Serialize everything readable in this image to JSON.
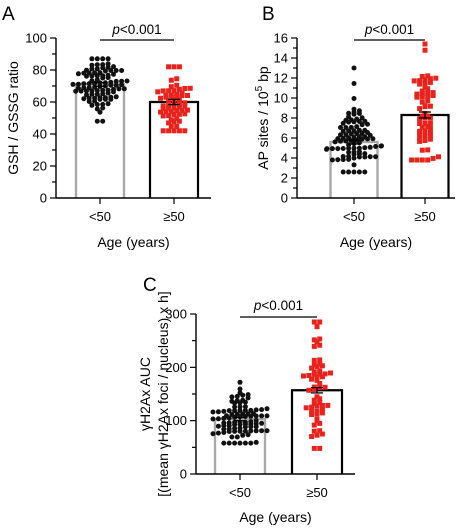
{
  "colors": {
    "under50_points": "#111111",
    "over50_points": "#e8221c",
    "under50_bar": "#a9a9a9",
    "over50_bar": "#000000",
    "axis": "#000000"
  },
  "chart_data": [
    {
      "panel": "A",
      "type": "bar",
      "overlay": "scatter",
      "categories": [
        "<50",
        "≥50"
      ],
      "values": [
        71,
        60
      ],
      "error": [
        1.2,
        1.6
      ],
      "ylabel": "GSH / GSSG ratio",
      "xlabel": "Age (years)",
      "ylim": [
        0,
        100
      ],
      "yticks": [
        0,
        10,
        20,
        30,
        40,
        50,
        60,
        70,
        80,
        90,
        100
      ],
      "ytick_labels": [
        "0",
        "",
        "20",
        "",
        "40",
        "",
        "60",
        "",
        "80",
        "",
        "100"
      ],
      "p_prefix": "p",
      "p_value": "<0.001",
      "marker_shapes": [
        "circle",
        "square"
      ],
      "point_counts": [
        90,
        60
      ],
      "points_range": [
        [
          48,
          87
        ],
        [
          42,
          82
        ]
      ]
    },
    {
      "panel": "B",
      "type": "bar",
      "overlay": "scatter",
      "categories": [
        "<50",
        "≥50"
      ],
      "values": [
        5.6,
        8.3
      ],
      "error": [
        0.2,
        0.3
      ],
      "ylabel_main": "AP sites / 10",
      "ylabel_sup": "5",
      "ylabel_tail": " bp",
      "xlabel": "Age (years)",
      "ylim": [
        0,
        16
      ],
      "yticks": [
        0,
        1,
        2,
        3,
        4,
        5,
        6,
        7,
        8,
        9,
        10,
        11,
        12,
        13,
        14,
        15,
        16
      ],
      "ytick_labels": [
        "0",
        "",
        "2",
        "",
        "4",
        "",
        "6",
        "",
        "8",
        "",
        "10",
        "",
        "12",
        "",
        "14",
        "",
        "16"
      ],
      "p_prefix": "p",
      "p_value": "<0.001",
      "marker_shapes": [
        "circle",
        "square"
      ],
      "point_counts": [
        90,
        60
      ],
      "points_range": [
        [
          2.6,
          13
        ],
        [
          3.8,
          15.4
        ]
      ]
    },
    {
      "panel": "C",
      "type": "bar",
      "overlay": "scatter",
      "categories": [
        "<50",
        "≥50"
      ],
      "values": [
        103,
        157
      ],
      "error": [
        3,
        5
      ],
      "ylabel_line1": "γH2Ax AUC",
      "ylabel_line2": "[(mean γH2Ax foci  / nucleus) x h]",
      "xlabel": "Age (years)",
      "ylim": [
        0,
        300
      ],
      "yticks": [
        0,
        50,
        100,
        150,
        200,
        250,
        300
      ],
      "ytick_labels": [
        "0",
        "",
        "100",
        "",
        "200",
        "",
        "300"
      ],
      "p_prefix": "p",
      "p_value": "<0.001",
      "marker_shapes": [
        "circle",
        "square"
      ],
      "point_counts": [
        90,
        60
      ],
      "points_range": [
        [
          58,
          172
        ],
        [
          48,
          285
        ]
      ]
    }
  ]
}
